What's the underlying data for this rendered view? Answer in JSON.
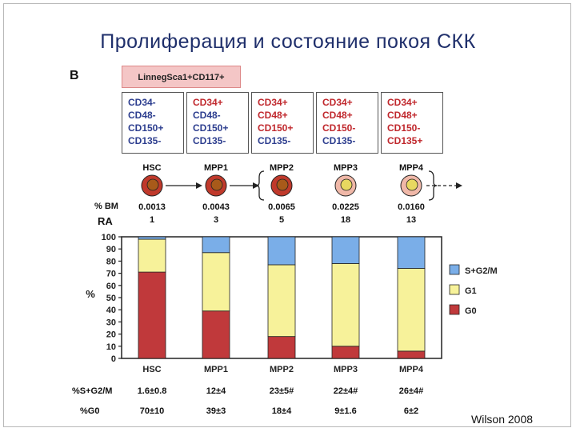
{
  "title": "Пролиферация  и состояние покоя СКК",
  "panel_letter": "B",
  "lineage_label": "LinnegSca1+CD117+",
  "stages": [
    {
      "name": "HSC",
      "markers": [
        {
          "t": "CD34-",
          "pos": false
        },
        {
          "t": "CD48-",
          "pos": false
        },
        {
          "t": "CD150+",
          "pos": false
        },
        {
          "t": "CD135-",
          "pos": false
        }
      ],
      "bm": "0.0013",
      "ra": "1",
      "sg2m": "1.6±0.8",
      "g0": "70±10"
    },
    {
      "name": "MPP1",
      "markers": [
        {
          "t": "CD34+",
          "pos": true
        },
        {
          "t": "CD48-",
          "pos": false
        },
        {
          "t": "CD150+",
          "pos": false
        },
        {
          "t": "CD135-",
          "pos": false
        }
      ],
      "bm": "0.0043",
      "ra": "3",
      "sg2m": "12±4",
      "g0": "39±3"
    },
    {
      "name": "MPP2",
      "markers": [
        {
          "t": "CD34+",
          "pos": true
        },
        {
          "t": "CD48+",
          "pos": true
        },
        {
          "t": "CD150+",
          "pos": true
        },
        {
          "t": "CD135-",
          "pos": false
        }
      ],
      "bm": "0.0065",
      "ra": "5",
      "sg2m": "23±5#",
      "g0": "18±4"
    },
    {
      "name": "MPP3",
      "markers": [
        {
          "t": "CD34+",
          "pos": true
        },
        {
          "t": "CD48+",
          "pos": true
        },
        {
          "t": "CD150-",
          "pos": true
        },
        {
          "t": "CD135-",
          "pos": false
        }
      ],
      "bm": "0.0225",
      "ra": "18",
      "sg2m": "22±4#",
      "g0": "9±1.6"
    },
    {
      "name": "MPP4",
      "markers": [
        {
          "t": "CD34+",
          "pos": true
        },
        {
          "t": "CD48+",
          "pos": true
        },
        {
          "t": "CD150-",
          "pos": true
        },
        {
          "t": "CD135+",
          "pos": true
        }
      ],
      "bm": "0.0160",
      "ra": "13",
      "sg2m": "26±4#",
      "g0": "6±2"
    }
  ],
  "row_labels": {
    "bm": "% BM",
    "ra": "RA",
    "sg2m": "%S+G2/M",
    "g0": "%G0"
  },
  "citation": "Wilson 2008",
  "colors": {
    "g0": "#c0393b",
    "g1": "#f7f29a",
    "sg2m": "#7aaee8",
    "marker_pos": "#c0282d",
    "marker_neg": "#2d3e8f",
    "title": "#1f2f6b"
  },
  "chart_data": {
    "type": "bar",
    "stacked": true,
    "categories": [
      "HSC",
      "MPP1",
      "MPP2",
      "MPP3",
      "MPP4"
    ],
    "series": [
      {
        "name": "G0",
        "values": [
          71,
          39,
          18,
          10,
          6
        ]
      },
      {
        "name": "G1",
        "values": [
          27,
          48,
          59,
          68,
          68
        ]
      },
      {
        "name": "S+G2/M",
        "values": [
          2,
          13,
          23,
          22,
          26
        ]
      }
    ],
    "ylabel": "%",
    "ylim": [
      0,
      100
    ],
    "yticks": [
      0,
      10,
      20,
      30,
      40,
      50,
      60,
      70,
      80,
      90,
      100
    ],
    "legend": [
      "S+G2/M",
      "G1",
      "G0"
    ],
    "legend_position": "right"
  }
}
